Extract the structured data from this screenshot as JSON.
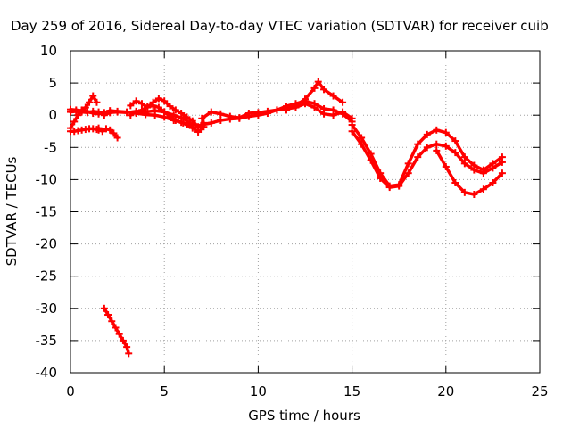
{
  "chart_data": {
    "type": "scatter",
    "title": "Day 259 of 2016, Sidereal Day-to-day VTEC variation (SDTVAR) for receiver cuib",
    "xlabel": "GPS time / hours",
    "ylabel": "SDTVAR / TECUs",
    "xlim": [
      0,
      25
    ],
    "ylim": [
      -40,
      10
    ],
    "x_ticks": [
      0,
      5,
      10,
      15,
      20,
      25
    ],
    "y_ticks": [
      10,
      5,
      0,
      -5,
      -10,
      -15,
      -20,
      -25,
      -30,
      -35,
      -40
    ],
    "grid": true,
    "series": [
      {
        "name": "SDTVAR",
        "color": "#ff0000",
        "segments": [
          {
            "x": [
              0.0,
              0.2,
              0.4,
              0.6,
              0.8,
              1.0,
              1.2,
              1.4,
              1.5
            ],
            "y": [
              -2.5,
              -2.5,
              -2.4,
              -2.3,
              -2.2,
              -2.1,
              -2.1,
              -2.2,
              -2.3
            ]
          },
          {
            "x": [
              0.0,
              0.2,
              0.4,
              0.6,
              0.8,
              1.0,
              1.2,
              1.4
            ],
            "y": [
              -2.0,
              -1.0,
              0.0,
              0.8,
              1.2,
              2.0,
              3.0,
              2.0
            ]
          },
          {
            "x": [
              1.5,
              1.7,
              1.9,
              2.1,
              2.3,
              2.5
            ],
            "y": [
              -2.0,
              -2.5,
              -2.1,
              -2.3,
              -2.8,
              -3.5
            ]
          },
          {
            "x": [
              0.0,
              0.3,
              0.6,
              0.9,
              1.2,
              1.5,
              1.8,
              2.1,
              2.5,
              3.0,
              3.5,
              4.0,
              4.5,
              5.0,
              5.5,
              6.0,
              6.5
            ],
            "y": [
              0.5,
              0.6,
              0.5,
              0.4,
              0.6,
              0.5,
              0.0,
              0.4,
              0.5,
              0.4,
              0.6,
              0.5,
              0.7,
              0.5,
              0.0,
              -0.5,
              -1.5
            ]
          },
          {
            "x": [
              0.0,
              0.3,
              0.6,
              0.9,
              1.2,
              1.5,
              1.8,
              2.1,
              2.5,
              3.0,
              3.5,
              4.0,
              4.5,
              5.0,
              5.5,
              6.0,
              6.5
            ],
            "y": [
              0.9,
              0.8,
              0.7,
              0.6,
              0.3,
              0.2,
              0.4,
              0.7,
              0.6,
              0.5,
              0.3,
              0.1,
              0.0,
              -0.3,
              -0.8,
              -1.2,
              -2.0
            ]
          },
          {
            "x": [
              3.2,
              3.5,
              3.8,
              4.1,
              4.4,
              4.7,
              5.0,
              5.3,
              5.6,
              5.9,
              6.2,
              6.5,
              6.8,
              7.1
            ],
            "y": [
              1.5,
              2.2,
              1.8,
              1.2,
              2.0,
              2.6,
              2.2,
              1.4,
              0.8,
              0.3,
              -0.3,
              -0.9,
              -1.8,
              -1.2
            ]
          },
          {
            "x": [
              3.2,
              3.5,
              3.8,
              4.1,
              4.4,
              4.7,
              5.0,
              5.3,
              5.6,
              5.9,
              6.2,
              6.5,
              6.8,
              7.1
            ],
            "y": [
              0.0,
              0.5,
              0.8,
              1.3,
              1.5,
              1.2,
              0.5,
              -0.2,
              -0.8,
              -1.1,
              -1.4,
              -1.8,
              -2.6,
              -1.8
            ]
          },
          {
            "x": [
              1.8,
              2.0,
              2.2,
              2.4,
              2.6,
              2.8,
              3.0,
              3.1
            ],
            "y": [
              -30.0,
              -31.0,
              -32.0,
              -33.0,
              -34.0,
              -35.0,
              -36.0,
              -37.0
            ]
          },
          {
            "x": [
              7.0,
              7.5,
              8.0,
              8.5,
              9.0,
              9.5,
              10.0,
              10.5,
              11.0,
              11.5,
              12.0,
              12.5,
              13.0,
              13.5,
              14.0,
              14.5,
              15.0
            ],
            "y": [
              -0.5,
              0.5,
              0.2,
              -0.2,
              -0.4,
              0.3,
              0.4,
              0.6,
              0.8,
              1.0,
              1.2,
              1.8,
              1.2,
              0.2,
              0.0,
              0.5,
              -0.5
            ]
          },
          {
            "x": [
              7.0,
              7.5,
              8.0,
              8.5,
              9.0,
              9.5,
              10.0,
              10.5,
              11.0,
              11.5,
              12.0,
              12.5,
              13.0,
              13.5,
              14.0,
              14.5,
              15.0
            ],
            "y": [
              -1.5,
              -1.2,
              -0.8,
              -0.6,
              -0.5,
              -0.2,
              0.0,
              0.3,
              0.8,
              1.4,
              1.8,
              2.2,
              1.8,
              1.0,
              0.8,
              0.2,
              -1.0
            ]
          },
          {
            "x": [
              11.5,
              12.0,
              12.5,
              13.0,
              13.2,
              13.5,
              14.0,
              14.5
            ],
            "y": [
              0.8,
              1.5,
              2.5,
              4.2,
              5.2,
              4.0,
              3.0,
              2.0
            ]
          },
          {
            "x": [
              15.0,
              15.5,
              16.0,
              16.5,
              17.0,
              17.5,
              18.0,
              18.5,
              19.0,
              19.5,
              20.0,
              20.5,
              21.0,
              21.5,
              22.0,
              22.5,
              23.0
            ],
            "y": [
              -1.5,
              -3.5,
              -6.0,
              -9.0,
              -11.0,
              -10.8,
              -7.5,
              -4.5,
              -3.0,
              -2.3,
              -2.7,
              -4.0,
              -6.5,
              -7.8,
              -8.5,
              -7.5,
              -6.5
            ]
          },
          {
            "x": [
              15.0,
              15.5,
              16.0,
              16.5,
              17.0,
              17.5,
              18.0,
              18.5,
              19.0,
              19.5,
              20.0,
              20.5,
              21.0,
              21.5,
              22.0,
              22.5,
              23.0
            ],
            "y": [
              -2.5,
              -4.5,
              -7.0,
              -9.8,
              -11.2,
              -11.0,
              -9.0,
              -6.5,
              -5.0,
              -4.5,
              -4.8,
              -5.8,
              -7.5,
              -8.5,
              -9.0,
              -8.2,
              -7.3
            ]
          },
          {
            "x": [
              19.5,
              20.0,
              20.5,
              21.0,
              21.5,
              22.0,
              22.5,
              23.0
            ],
            "y": [
              -5.5,
              -8.0,
              -10.5,
              -12.0,
              -12.3,
              -11.5,
              -10.5,
              -9.0
            ]
          }
        ]
      }
    ]
  }
}
